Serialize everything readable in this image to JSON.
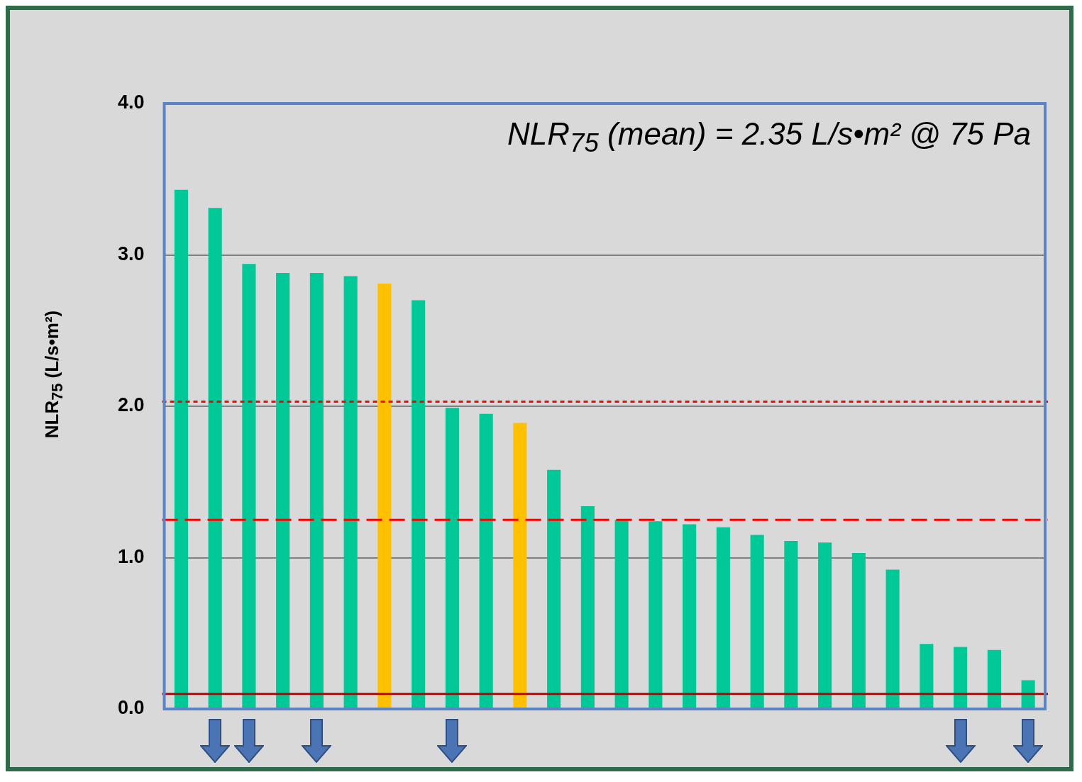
{
  "chart_data": {
    "type": "bar",
    "ylabel": "NLR$_{75}$ (L/s•m²)",
    "categories": [
      null,
      null,
      null,
      null,
      null,
      null,
      null,
      null,
      null,
      null,
      null,
      null,
      null,
      null,
      null,
      null,
      null,
      null,
      null,
      null,
      null,
      null,
      null,
      null,
      null,
      null
    ],
    "values": [
      3.43,
      3.31,
      2.94,
      2.88,
      2.88,
      2.86,
      2.81,
      2.7,
      1.99,
      1.95,
      1.89,
      1.58,
      1.34,
      1.25,
      1.24,
      1.22,
      1.2,
      1.15,
      1.11,
      1.1,
      1.03,
      0.92,
      0.43,
      0.41,
      0.39,
      0.19
    ],
    "colors": [
      "#00c896",
      "#00c896",
      "#00c896",
      "#00c896",
      "#00c896",
      "#00c896",
      "#ffc000",
      "#00c896",
      "#00c896",
      "#00c896",
      "#ffc000",
      "#00c896",
      "#00c896",
      "#00c896",
      "#00c896",
      "#00c896",
      "#00c896",
      "#00c896",
      "#00c896",
      "#00c896",
      "#00c896",
      "#00c896",
      "#00c896",
      "#00c896",
      "#00c896",
      "#00c896"
    ],
    "ylim": [
      0,
      4
    ],
    "yticks": [
      {
        "value": 0,
        "label": "0.0"
      },
      {
        "value": 1,
        "label": "1.0"
      },
      {
        "value": 2,
        "label": "2.0"
      },
      {
        "value": 3,
        "label": "3.0"
      },
      {
        "value": 4,
        "label": "4.0"
      }
    ],
    "grid": "y",
    "ref_lines": [
      {
        "axis": "y",
        "value": 2.03,
        "color": "#ff0000",
        "line_style": "dotted"
      },
      {
        "axis": "y",
        "value": 1.25,
        "color": "#ff0000",
        "line_style": "dashed"
      },
      {
        "axis": "y",
        "value": 0.1,
        "color": "#c00000",
        "line_style": "solid"
      }
    ],
    "annotations": [
      "NLR$_{75}$ (mean) = 2.35 L/s•m² @ 75 Pa"
    ]
  }
}
